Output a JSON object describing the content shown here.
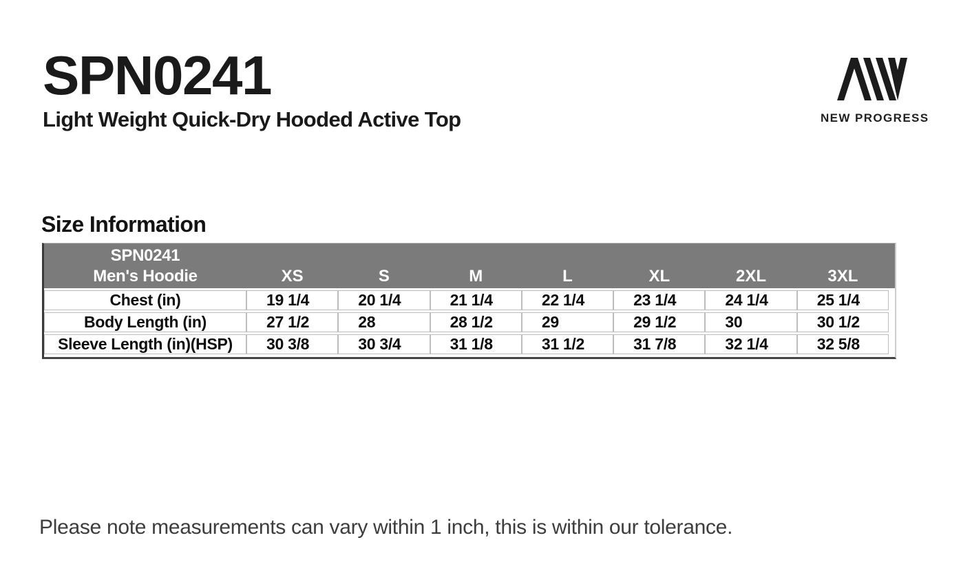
{
  "header": {
    "product_code": "SPN0241",
    "product_name": "Light Weight Quick-Dry Hooded Active Top"
  },
  "logo": {
    "mark": "new-progress-monogram-icon",
    "brand_text": "NEW PROGRESS"
  },
  "section": {
    "title": "Size Information"
  },
  "size_table": {
    "header_line1": "SPN0241",
    "header_line2": "Men's Hoodie",
    "sizes": [
      "XS",
      "S",
      "M",
      "L",
      "XL",
      "2XL",
      "3XL"
    ],
    "rows": [
      {
        "label": "Chest (in)",
        "values": [
          "19 1/4",
          "20 1/4",
          "21 1/4",
          "22 1/4",
          "23 1/4",
          "24 1/4",
          "25 1/4"
        ]
      },
      {
        "label": "Body Length (in)",
        "values": [
          "27 1/2",
          "28",
          "28 1/2",
          "29",
          "29 1/2",
          "30",
          "30 1/2"
        ]
      },
      {
        "label": "Sleeve Length (in)(HSP)",
        "values": [
          "30 3/8",
          "30 3/4",
          "31 1/8",
          "31 1/2",
          "31 7/8",
          "32 1/4",
          "32 5/8"
        ]
      }
    ]
  },
  "footer": {
    "note": "Please note measurements can vary within 1 inch, this is within our tolerance."
  },
  "colors": {
    "table_header_bg": "#7b7b7b",
    "table_header_text": "#ffffff",
    "grid_line": "#bdbdbd",
    "outer_border_dark": "#3a3a3a",
    "text": "#161616",
    "note_text": "#3d3d3d"
  }
}
